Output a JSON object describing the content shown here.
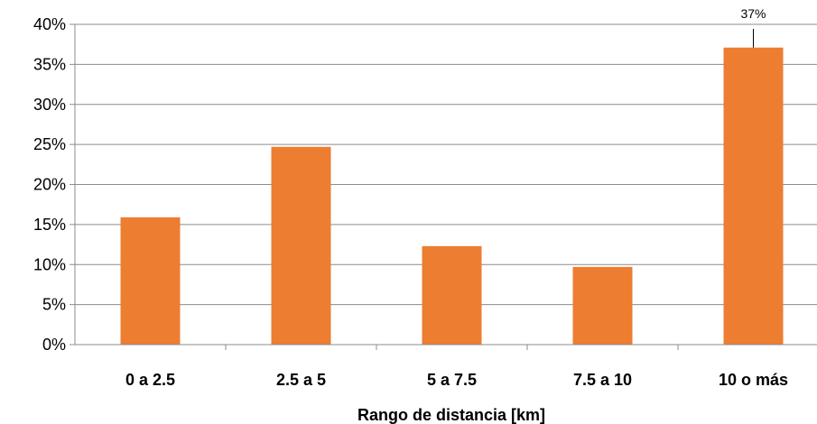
{
  "chart_data": {
    "type": "bar",
    "categories": [
      "0 a 2.5",
      "2.5 a 5",
      "5 a 7.5",
      "7.5 a 10",
      "10 o más"
    ],
    "values": [
      15.9,
      24.7,
      12.3,
      9.7,
      37.1
    ],
    "ylim": [
      0,
      40
    ],
    "yticks": [
      0,
      5,
      10,
      15,
      20,
      25,
      30,
      35,
      40
    ],
    "ytick_format": "%",
    "xlabel": "Rango de distancia [km]",
    "ylabel": "",
    "title": "",
    "grid": true,
    "legend": "none",
    "bar_color": "#ED7D31",
    "annotations": [
      {
        "category": "10 o más",
        "label": "37%"
      }
    ]
  }
}
